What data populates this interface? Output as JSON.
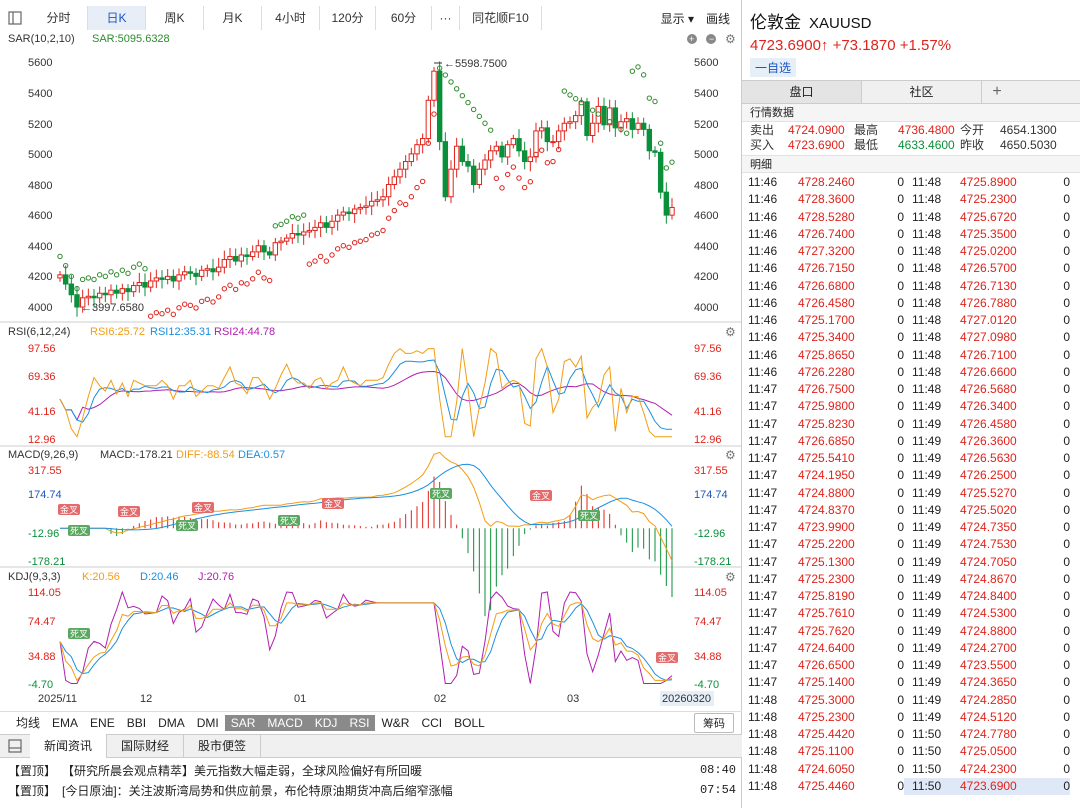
{
  "toolbar": {
    "periods": [
      "分时",
      "日K",
      "周K",
      "月K",
      "4小时",
      "120分",
      "60分"
    ],
    "more": "···",
    "f10": "同花顺F10",
    "display": "显示",
    "draw": "画线"
  },
  "panels": {
    "main": {
      "label": "SAR(10,2,10)",
      "value": "SAR:5095.6328",
      "high_label": "5598.7500",
      "low_label": "3997.6580",
      "ticks": [
        "5600",
        "5400",
        "5200",
        "5000",
        "4800",
        "4600",
        "4400",
        "4200",
        "4000"
      ]
    },
    "rsi": {
      "label": "RSI(6,12,24)",
      "v1": "RSI6:25.72",
      "v2": "RSI12:35.31",
      "v3": "RSI24:44.78",
      "ticks": [
        "97.56",
        "69.36",
        "41.16",
        "12.96"
      ]
    },
    "macd": {
      "label": "MACD(9,26,9)",
      "v1": "MACD:-178.21",
      "v2": "DIFF:-88.54",
      "v3": "DEA:0.57",
      "ticks": [
        "317.55",
        "174.74",
        "-12.96",
        "-178.21"
      ]
    },
    "kdj": {
      "label": "KDJ(9,3,3)",
      "v1": "K:20.56",
      "v2": "D:20.46",
      "v3": "J:20.76",
      "ticks": [
        "114.05",
        "74.47",
        "34.88",
        "-4.70"
      ]
    },
    "cross_gold": "金叉",
    "cross_dead": "死叉"
  },
  "xaxis": [
    "2025/11",
    "12",
    "01",
    "02",
    "03",
    "20260320"
  ],
  "indicators": [
    "均线",
    "EMA",
    "ENE",
    "BBI",
    "DMA",
    "DMI",
    "SAR",
    "MACD",
    "KDJ",
    "RSI",
    "W&R",
    "CCI",
    "BOLL"
  ],
  "indicators_on": [
    "SAR",
    "MACD",
    "KDJ",
    "RSI"
  ],
  "chip": "筹码",
  "news": {
    "tabs": [
      "新闻资讯",
      "国际财经",
      "股市便签"
    ],
    "items": [
      {
        "tag": "【置顶】",
        "text": "【研究所晨会观点精萃】美元指数大幅走弱，全球风险偏好有所回暖",
        "time": "08:40"
      },
      {
        "tag": "【置顶】",
        "text": "[今日原油]：关注波斯湾局势和供应前景，布伦特原油期货冲高后缩窄涨幅",
        "time": "07:54"
      }
    ]
  },
  "quote": {
    "name": "伦敦金",
    "code": "XAUUSD",
    "price": "4723.6900↑",
    "change": "+73.1870",
    "pct": "+1.57%",
    "watch": "一自选",
    "tabs": [
      "盘口",
      "社区"
    ],
    "section": "行情数据",
    "detail": "明细",
    "stats": [
      {
        "l1": "卖出",
        "v1": "4724.0900",
        "l2": "最高",
        "v2": "4736.4800",
        "l3": "今开",
        "v3": "4654.1300"
      },
      {
        "l1": "买入",
        "v1": "4723.6900",
        "l2": "最低",
        "v2": "4633.4600",
        "l3": "昨收",
        "v3": "4650.5030"
      }
    ],
    "ticks_left": [
      [
        "11:46",
        "4728.2460",
        "0"
      ],
      [
        "11:46",
        "4728.3600",
        "0"
      ],
      [
        "11:46",
        "4728.5280",
        "0"
      ],
      [
        "11:46",
        "4726.7400",
        "0"
      ],
      [
        "11:46",
        "4727.3200",
        "0"
      ],
      [
        "11:46",
        "4726.7150",
        "0"
      ],
      [
        "11:46",
        "4726.6800",
        "0"
      ],
      [
        "11:46",
        "4726.4580",
        "0"
      ],
      [
        "11:46",
        "4725.1700",
        "0"
      ],
      [
        "11:46",
        "4725.3400",
        "0"
      ],
      [
        "11:46",
        "4725.8650",
        "0"
      ],
      [
        "11:46",
        "4726.2280",
        "0"
      ],
      [
        "11:47",
        "4726.7500",
        "0"
      ],
      [
        "11:47",
        "4725.9800",
        "0"
      ],
      [
        "11:47",
        "4725.8230",
        "0"
      ],
      [
        "11:47",
        "4726.6850",
        "0"
      ],
      [
        "11:47",
        "4725.5410",
        "0"
      ],
      [
        "11:47",
        "4724.1950",
        "0"
      ],
      [
        "11:47",
        "4724.8800",
        "0"
      ],
      [
        "11:47",
        "4724.8370",
        "0"
      ],
      [
        "11:47",
        "4723.9900",
        "0"
      ],
      [
        "11:47",
        "4725.2200",
        "0"
      ],
      [
        "11:47",
        "4725.1300",
        "0"
      ],
      [
        "11:47",
        "4725.2300",
        "0"
      ],
      [
        "11:47",
        "4725.8190",
        "0"
      ],
      [
        "11:47",
        "4725.7610",
        "0"
      ],
      [
        "11:47",
        "4725.7620",
        "0"
      ],
      [
        "11:47",
        "4724.6400",
        "0"
      ],
      [
        "11:47",
        "4726.6500",
        "0"
      ],
      [
        "11:47",
        "4725.1400",
        "0"
      ],
      [
        "11:48",
        "4725.3000",
        "0"
      ],
      [
        "11:48",
        "4725.2300",
        "0"
      ],
      [
        "11:48",
        "4725.4420",
        "0"
      ],
      [
        "11:48",
        "4725.1100",
        "0"
      ],
      [
        "11:48",
        "4724.6050",
        "0"
      ],
      [
        "11:48",
        "4725.4460",
        "0"
      ]
    ],
    "ticks_right": [
      [
        "11:48",
        "4725.8900",
        "0"
      ],
      [
        "11:48",
        "4725.2300",
        "0"
      ],
      [
        "11:48",
        "4725.6720",
        "0"
      ],
      [
        "11:48",
        "4725.3500",
        "0"
      ],
      [
        "11:48",
        "4725.0200",
        "0"
      ],
      [
        "11:48",
        "4726.5700",
        "0"
      ],
      [
        "11:48",
        "4726.7130",
        "0"
      ],
      [
        "11:48",
        "4726.7880",
        "0"
      ],
      [
        "11:48",
        "4727.0120",
        "0"
      ],
      [
        "11:48",
        "4727.0980",
        "0"
      ],
      [
        "11:48",
        "4726.7100",
        "0"
      ],
      [
        "11:48",
        "4726.6600",
        "0"
      ],
      [
        "11:48",
        "4726.5680",
        "0"
      ],
      [
        "11:49",
        "4726.3400",
        "0"
      ],
      [
        "11:49",
        "4726.4580",
        "0"
      ],
      [
        "11:49",
        "4726.3600",
        "0"
      ],
      [
        "11:49",
        "4726.5630",
        "0"
      ],
      [
        "11:49",
        "4726.2500",
        "0"
      ],
      [
        "11:49",
        "4725.5270",
        "0"
      ],
      [
        "11:49",
        "4725.5020",
        "0"
      ],
      [
        "11:49",
        "4724.7350",
        "0"
      ],
      [
        "11:49",
        "4724.7530",
        "0"
      ],
      [
        "11:49",
        "4724.7050",
        "0"
      ],
      [
        "11:49",
        "4724.8670",
        "0"
      ],
      [
        "11:49",
        "4724.8400",
        "0"
      ],
      [
        "11:49",
        "4724.5300",
        "0"
      ],
      [
        "11:49",
        "4724.8800",
        "0"
      ],
      [
        "11:49",
        "4724.2700",
        "0"
      ],
      [
        "11:49",
        "4723.5500",
        "0"
      ],
      [
        "11:49",
        "4724.3650",
        "0"
      ],
      [
        "11:49",
        "4724.2850",
        "0"
      ],
      [
        "11:49",
        "4724.5120",
        "0"
      ],
      [
        "11:50",
        "4724.7780",
        "0"
      ],
      [
        "11:50",
        "4725.0500",
        "0"
      ],
      [
        "11:50",
        "4724.2300",
        "0"
      ],
      [
        "11:50",
        "4723.6900",
        "0"
      ]
    ]
  },
  "colors": {
    "up": "#e0231c",
    "down": "#0a8f3a",
    "blue": "#1a56c4",
    "orange": "#f39c12",
    "purple": "#b01fb0",
    "sar": "#2e8b2e"
  }
}
